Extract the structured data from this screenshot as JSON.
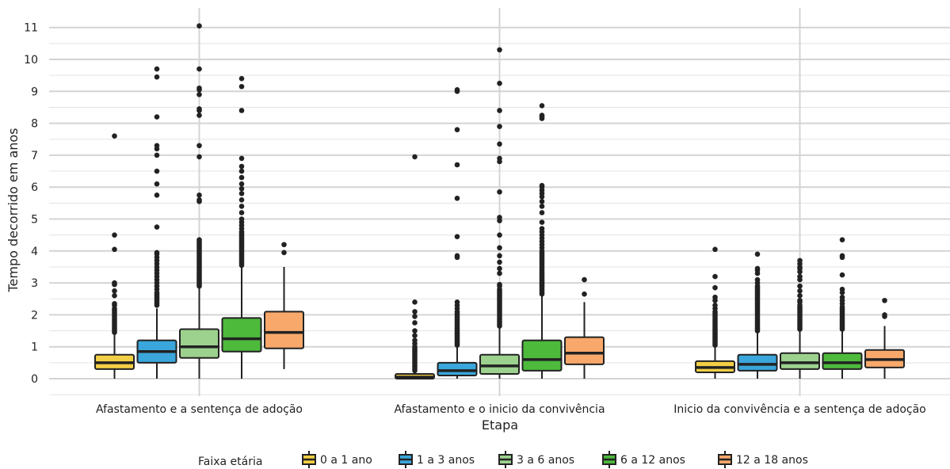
{
  "chart_data": {
    "type": "boxplot",
    "xlabel": "Etapa",
    "ylabel": "Tempo decorrido em anos",
    "ylim": [
      -0.6,
      11.5
    ],
    "yticks": [
      0,
      1,
      2,
      3,
      4,
      5,
      6,
      7,
      8,
      9,
      10,
      11
    ],
    "grid": true,
    "legend_title": "Faixa etária",
    "legend_position": "bottom",
    "categories": [
      "Afastamento e a sentença de adoção",
      "Afastamento e o inicio da convivência",
      "Inicio da convivência e a sentença de adoção"
    ],
    "series": [
      {
        "name": "0 a 1 ano",
        "color": "#F2CF45"
      },
      {
        "name": "1 a 3 anos",
        "color": "#3AA6DB"
      },
      {
        "name": "3 a 6 anos",
        "color": "#9DD18E"
      },
      {
        "name": "6 a 12 anos",
        "color": "#4DBA3C"
      },
      {
        "name": "12 a 18 anos",
        "color": "#F8A86B"
      }
    ],
    "boxes": [
      [
        {
          "q1": 0.3,
          "median": 0.5,
          "q3": 0.75,
          "low": 0.0,
          "high": 1.4,
          "outliers": [
            1.45,
            1.5,
            1.55,
            1.6,
            1.65,
            1.7,
            1.75,
            1.8,
            1.85,
            1.9,
            1.95,
            2.0,
            2.05,
            2.1,
            2.15,
            2.2,
            2.3,
            2.35,
            2.6,
            2.75,
            2.95,
            3.0,
            4.05,
            4.5,
            7.6
          ]
        },
        {
          "q1": 0.5,
          "median": 0.85,
          "q3": 1.2,
          "low": 0.0,
          "high": 2.2,
          "outliers": [
            2.3,
            2.35,
            2.4,
            2.45,
            2.5,
            2.55,
            2.6,
            2.65,
            2.7,
            2.8,
            2.9,
            3.0,
            3.1,
            3.2,
            3.3,
            3.4,
            3.5,
            3.6,
            3.7,
            3.8,
            3.9,
            3.95,
            4.75,
            5.75,
            6.1,
            6.5,
            7.0,
            7.2,
            7.3,
            8.2,
            9.45,
            9.7
          ]
        },
        {
          "q1": 0.65,
          "median": 1.0,
          "q3": 1.55,
          "low": 0.0,
          "high": 2.85,
          "outliers": [
            2.9,
            2.95,
            3.0,
            3.05,
            3.1,
            3.15,
            3.2,
            3.25,
            3.3,
            3.35,
            3.4,
            3.45,
            3.5,
            3.55,
            3.6,
            3.65,
            3.7,
            3.75,
            3.8,
            3.85,
            3.9,
            3.95,
            4.0,
            4.05,
            4.1,
            4.15,
            4.2,
            4.25,
            4.3,
            4.35,
            5.55,
            5.6,
            5.75,
            6.95,
            7.3,
            8.25,
            8.4,
            8.45,
            8.9,
            9.05,
            9.1,
            9.7,
            11.05
          ]
        },
        {
          "q1": 0.85,
          "median": 1.25,
          "q3": 1.9,
          "low": 0.0,
          "high": 3.5,
          "outliers": [
            3.55,
            3.6,
            3.65,
            3.7,
            3.75,
            3.8,
            3.85,
            3.9,
            3.95,
            4.0,
            4.05,
            4.1,
            4.15,
            4.2,
            4.25,
            4.3,
            4.35,
            4.4,
            4.45,
            4.5,
            4.55,
            4.6,
            4.7,
            4.8,
            4.9,
            5.0,
            5.2,
            5.4,
            5.6,
            5.8,
            5.95,
            6.1,
            6.3,
            6.5,
            6.65,
            6.9,
            8.4,
            9.15,
            9.4
          ]
        },
        {
          "q1": 0.95,
          "median": 1.45,
          "q3": 2.1,
          "low": 0.3,
          "high": 3.5,
          "outliers": [
            3.95,
            4.2
          ]
        }
      ],
      [
        {
          "q1": 0.0,
          "median": 0.05,
          "q3": 0.15,
          "low": 0.0,
          "high": 0.2,
          "outliers": [
            0.25,
            0.3,
            0.35,
            0.4,
            0.45,
            0.5,
            0.55,
            0.6,
            0.65,
            0.7,
            0.75,
            0.8,
            0.85,
            0.9,
            0.95,
            1.0,
            1.1,
            1.2,
            1.35,
            1.5,
            1.75,
            1.95,
            2.1,
            2.4,
            6.95
          ]
        },
        {
          "q1": 0.1,
          "median": 0.25,
          "q3": 0.5,
          "low": 0.0,
          "high": 1.0,
          "outliers": [
            1.05,
            1.1,
            1.15,
            1.2,
            1.25,
            1.3,
            1.35,
            1.4,
            1.45,
            1.5,
            1.55,
            1.6,
            1.65,
            1.7,
            1.75,
            1.8,
            1.85,
            1.9,
            1.95,
            2.0,
            2.05,
            2.1,
            2.2,
            2.3,
            2.4,
            3.8,
            3.85,
            4.45,
            5.65,
            6.7,
            7.8,
            9.0,
            9.05
          ]
        },
        {
          "q1": 0.15,
          "median": 0.4,
          "q3": 0.75,
          "low": 0.0,
          "high": 1.6,
          "outliers": [
            1.65,
            1.7,
            1.75,
            1.8,
            1.85,
            1.9,
            1.95,
            2.0,
            2.05,
            2.1,
            2.15,
            2.2,
            2.25,
            2.3,
            2.35,
            2.4,
            2.45,
            2.5,
            2.55,
            2.6,
            2.65,
            2.7,
            2.75,
            2.8,
            2.9,
            2.95,
            3.3,
            3.45,
            3.65,
            3.85,
            4.1,
            4.5,
            4.95,
            5.05,
            5.85,
            6.8,
            6.9,
            7.35,
            7.9,
            8.4,
            9.25,
            10.3
          ]
        },
        {
          "q1": 0.25,
          "median": 0.6,
          "q3": 1.2,
          "low": 0.0,
          "high": 2.6,
          "outliers": [
            2.65,
            2.7,
            2.75,
            2.8,
            2.85,
            2.9,
            2.95,
            3.0,
            3.05,
            3.1,
            3.15,
            3.2,
            3.25,
            3.3,
            3.35,
            3.4,
            3.45,
            3.5,
            3.55,
            3.6,
            3.65,
            3.7,
            3.75,
            3.8,
            3.85,
            3.9,
            3.95,
            4.0,
            4.1,
            4.2,
            4.3,
            4.4,
            4.5,
            4.6,
            4.7,
            4.9,
            5.2,
            5.4,
            5.55,
            5.7,
            5.8,
            5.9,
            6.0,
            6.05,
            8.15,
            8.2,
            8.25,
            8.55
          ]
        },
        {
          "q1": 0.45,
          "median": 0.8,
          "q3": 1.3,
          "low": 0.0,
          "high": 2.4,
          "outliers": [
            2.65,
            3.1
          ]
        }
      ],
      [
        {
          "q1": 0.2,
          "median": 0.35,
          "q3": 0.55,
          "low": 0.0,
          "high": 1.0,
          "outliers": [
            1.05,
            1.1,
            1.15,
            1.2,
            1.25,
            1.3,
            1.35,
            1.4,
            1.45,
            1.5,
            1.55,
            1.6,
            1.65,
            1.7,
            1.75,
            1.8,
            1.85,
            1.9,
            1.95,
            2.0,
            2.05,
            2.1,
            2.2,
            2.3,
            2.45,
            2.55,
            2.85,
            3.2,
            4.05
          ]
        },
        {
          "q1": 0.25,
          "median": 0.45,
          "q3": 0.75,
          "low": 0.0,
          "high": 1.45,
          "outliers": [
            1.5,
            1.55,
            1.6,
            1.65,
            1.7,
            1.75,
            1.8,
            1.85,
            1.9,
            1.95,
            2.0,
            2.05,
            2.1,
            2.15,
            2.2,
            2.25,
            2.3,
            2.35,
            2.4,
            2.45,
            2.5,
            2.55,
            2.6,
            2.65,
            2.7,
            2.75,
            2.8,
            2.85,
            2.9,
            3.0,
            3.1,
            3.3,
            3.4,
            3.45,
            3.9
          ]
        },
        {
          "q1": 0.3,
          "median": 0.5,
          "q3": 0.8,
          "low": 0.0,
          "high": 1.5,
          "outliers": [
            1.55,
            1.6,
            1.65,
            1.7,
            1.75,
            1.8,
            1.85,
            1.9,
            1.95,
            2.0,
            2.05,
            2.1,
            2.15,
            2.2,
            2.25,
            2.3,
            2.4,
            2.45,
            2.6,
            2.75,
            2.9,
            3.1,
            3.2,
            3.35,
            3.45,
            3.5,
            3.6,
            3.7
          ]
        },
        {
          "q1": 0.3,
          "median": 0.5,
          "q3": 0.8,
          "low": 0.0,
          "high": 1.5,
          "outliers": [
            1.55,
            1.6,
            1.65,
            1.7,
            1.75,
            1.8,
            1.85,
            1.9,
            1.95,
            2.0,
            2.05,
            2.1,
            2.15,
            2.2,
            2.25,
            2.35,
            2.45,
            2.55,
            2.7,
            2.8,
            3.25,
            3.8,
            3.85,
            4.35
          ]
        },
        {
          "q1": 0.35,
          "median": 0.6,
          "q3": 0.9,
          "low": 0.0,
          "high": 1.65,
          "outliers": [
            1.95,
            2.0,
            2.45
          ]
        }
      ]
    ]
  }
}
